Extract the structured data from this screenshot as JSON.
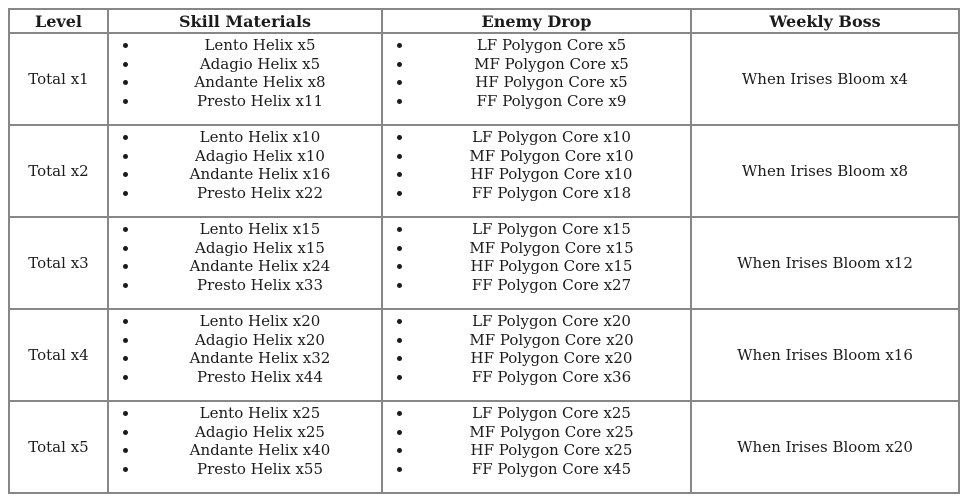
{
  "colors": {
    "border": "#878787",
    "text": "#1b1b1b",
    "background": "#ffffff"
  },
  "table": {
    "headers": [
      {
        "id": "level",
        "label": "Level"
      },
      {
        "id": "skill_materials",
        "label": "Skill Materials"
      },
      {
        "id": "enemy_drop",
        "label": "Enemy Drop"
      },
      {
        "id": "weekly_boss",
        "label": "Weekly Boss"
      }
    ],
    "rows": [
      {
        "level": "Total x1",
        "skill_materials": [
          "Lento Helix x5",
          "Adagio Helix x5",
          "Andante Helix x8",
          "Presto Helix x11"
        ],
        "enemy_drop": [
          "LF Polygon Core x5",
          "MF Polygon Core x5",
          "HF Polygon Core x5",
          "FF Polygon Core x9"
        ],
        "weekly_boss": "When Irises Bloom x4"
      },
      {
        "level": "Total x2",
        "skill_materials": [
          "Lento Helix x10",
          "Adagio Helix x10",
          "Andante Helix x16",
          "Presto Helix x22"
        ],
        "enemy_drop": [
          "LF Polygon Core x10",
          "MF Polygon Core x10",
          "HF Polygon Core x10",
          "FF Polygon Core x18"
        ],
        "weekly_boss": "When Irises Bloom x8"
      },
      {
        "level": "Total x3",
        "skill_materials": [
          "Lento Helix x15",
          "Adagio Helix x15",
          "Andante Helix x24",
          "Presto Helix x33"
        ],
        "enemy_drop": [
          "LF Polygon Core x15",
          "MF Polygon Core x15",
          "HF Polygon Core x15",
          "FF Polygon Core x27"
        ],
        "weekly_boss": "When Irises Bloom x12"
      },
      {
        "level": "Total x4",
        "skill_materials": [
          "Lento Helix x20",
          "Adagio Helix x20",
          "Andante Helix x32",
          "Presto Helix x44"
        ],
        "enemy_drop": [
          "LF Polygon Core x20",
          "MF Polygon Core x20",
          "HF Polygon Core x20",
          "FF Polygon Core x36"
        ],
        "weekly_boss": "When Irises Bloom x16"
      },
      {
        "level": "Total x5",
        "skill_materials": [
          "Lento Helix x25",
          "Adagio Helix x25",
          "Andante Helix x40",
          "Presto Helix x55"
        ],
        "enemy_drop": [
          "LF Polygon Core x25",
          "MF Polygon Core x25",
          "HF Polygon Core x25",
          "FF Polygon Core x45"
        ],
        "weekly_boss": "When Irises Bloom x20"
      }
    ]
  }
}
